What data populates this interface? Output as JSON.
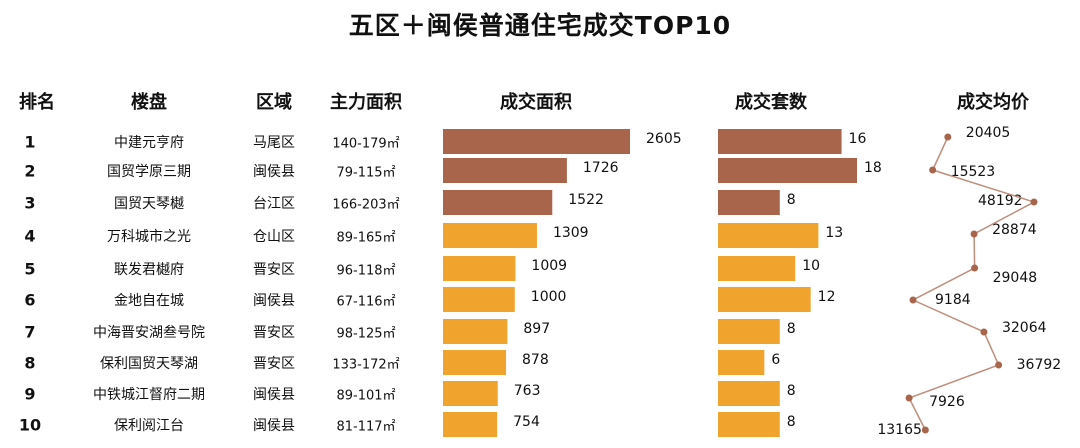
{
  "title": "五区＋闽侯普通住宅成交TOP10",
  "headers": {
    "rank": "排名",
    "project": "楼盘",
    "district": "区域",
    "area": "主力面积",
    "deal_area": "成交面积",
    "deal_units": "成交套数",
    "avg_price": "成交均价"
  },
  "colors": {
    "top3": "#a8654b",
    "others": "#f0a42e",
    "line": "#c08d7b",
    "dot": "#a8654b"
  },
  "rows": [
    {
      "rank": "1",
      "project": "中建元亨府",
      "district": "马尾区",
      "area": "140-179㎡"
    },
    {
      "rank": "2",
      "project": "国贸学原三期",
      "district": "闽侯县",
      "area": "79-115㎡"
    },
    {
      "rank": "3",
      "project": "国贸天琴樾",
      "district": "台江区",
      "area": "166-203㎡"
    },
    {
      "rank": "4",
      "project": "万科城市之光",
      "district": "仓山区",
      "area": "89-165㎡"
    },
    {
      "rank": "5",
      "project": "联发君樾府",
      "district": "晋安区",
      "area": "96-118㎡"
    },
    {
      "rank": "6",
      "project": "金地自在城",
      "district": "闽侯县",
      "area": "67-116㎡"
    },
    {
      "rank": "7",
      "project": "中海晋安湖叁号院",
      "district": "晋安区",
      "area": "98-125㎡"
    },
    {
      "rank": "8",
      "project": "保利国贸天琴湖",
      "district": "晋安区",
      "area": "133-172㎡"
    },
    {
      "rank": "9",
      "project": "中铁城江督府二期",
      "district": "闽侯县",
      "area": "89-101㎡"
    },
    {
      "rank": "10",
      "project": "保利阅江台",
      "district": "闽侯县",
      "area": "81-117㎡"
    }
  ],
  "chart_data": [
    {
      "type": "bar",
      "orientation": "horizontal",
      "title": "成交面积",
      "categories": [
        "中建元亨府",
        "国贸学原三期",
        "国贸天琴樾",
        "万科城市之光",
        "联发君樾府",
        "金地自在城",
        "中海晋安湖叁号院",
        "保利国贸天琴湖",
        "中铁城江督府二期",
        "保利阅江台"
      ],
      "values": [
        2605,
        1726,
        1522,
        1309,
        1009,
        1000,
        897,
        878,
        763,
        754
      ]
    },
    {
      "type": "bar",
      "orientation": "horizontal",
      "title": "成交套数",
      "categories": [
        "中建元亨府",
        "国贸学原三期",
        "国贸天琴樾",
        "万科城市之光",
        "联发君樾府",
        "金地自在城",
        "中海晋安湖叁号院",
        "保利国贸天琴湖",
        "中铁城江督府二期",
        "保利阅江台"
      ],
      "values": [
        16,
        18,
        8,
        13,
        10,
        12,
        8,
        6,
        8,
        8
      ]
    },
    {
      "type": "line",
      "orientation": "vertical",
      "title": "成交均价",
      "categories": [
        "中建元亨府",
        "国贸学原三期",
        "国贸天琴樾",
        "万科城市之光",
        "联发君樾府",
        "金地自在城",
        "中海晋安湖叁号院",
        "保利国贸天琴湖",
        "中铁城江督府二期",
        "保利阅江台"
      ],
      "values": [
        20405,
        15523,
        48192,
        28874,
        29048,
        9184,
        32064,
        36792,
        7926,
        13165
      ]
    }
  ]
}
